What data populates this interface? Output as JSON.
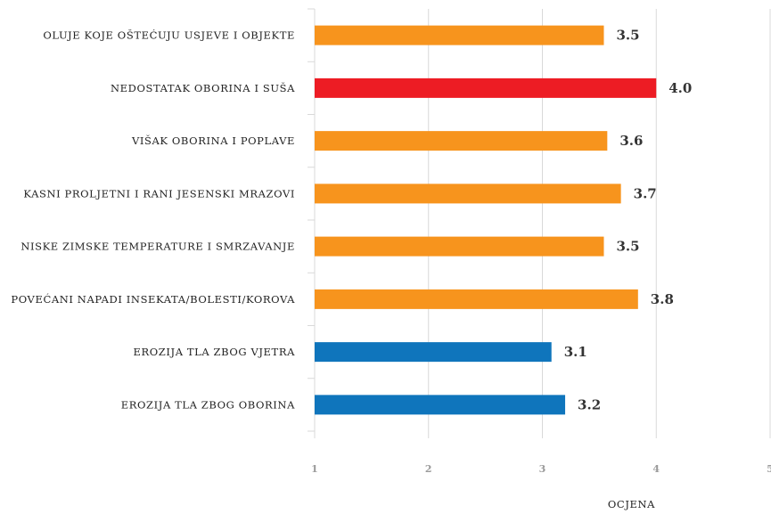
{
  "chart_data": {
    "type": "bar",
    "orientation": "horizontal",
    "title": "",
    "xlabel": "OCJENA",
    "ylabel": "",
    "xlim": [
      1,
      5
    ],
    "xticks": [
      "1",
      "2",
      "3",
      "4",
      "5"
    ],
    "grid": true,
    "legend": "none",
    "categories": [
      "OLUJE KOJE OŠTEĆUJU USJEVE I OBJEKTE",
      "NEDOSTATAK OBORINA I SUŠA",
      "VIŠAK OBORINA I POPLAVE",
      "KASNI PROLJETNI I RANI JESENSKI MRAZOVI",
      "NISKE ZIMSKE TEMPERATURE I SMRZAVANJE",
      "POVEĆANI NAPADI INSEKATA/BOLESTI/KOROVA",
      "EROZIJA TLA ZBOG VJETRA",
      "EROZIJA TLA ZBOG OBORINA"
    ],
    "values": [
      3.54,
      4.0,
      3.57,
      3.69,
      3.54,
      3.84,
      3.08,
      3.2
    ],
    "value_labels": [
      "3.5",
      "4.0",
      "3.6",
      "3.7",
      "3.5",
      "3.8",
      "3.1",
      "3.2"
    ],
    "bar_colors": [
      "#f7941d",
      "#ed1c24",
      "#f7941d",
      "#f7941d",
      "#f7941d",
      "#f7941d",
      "#0f75bc",
      "#0f75bc"
    ]
  }
}
